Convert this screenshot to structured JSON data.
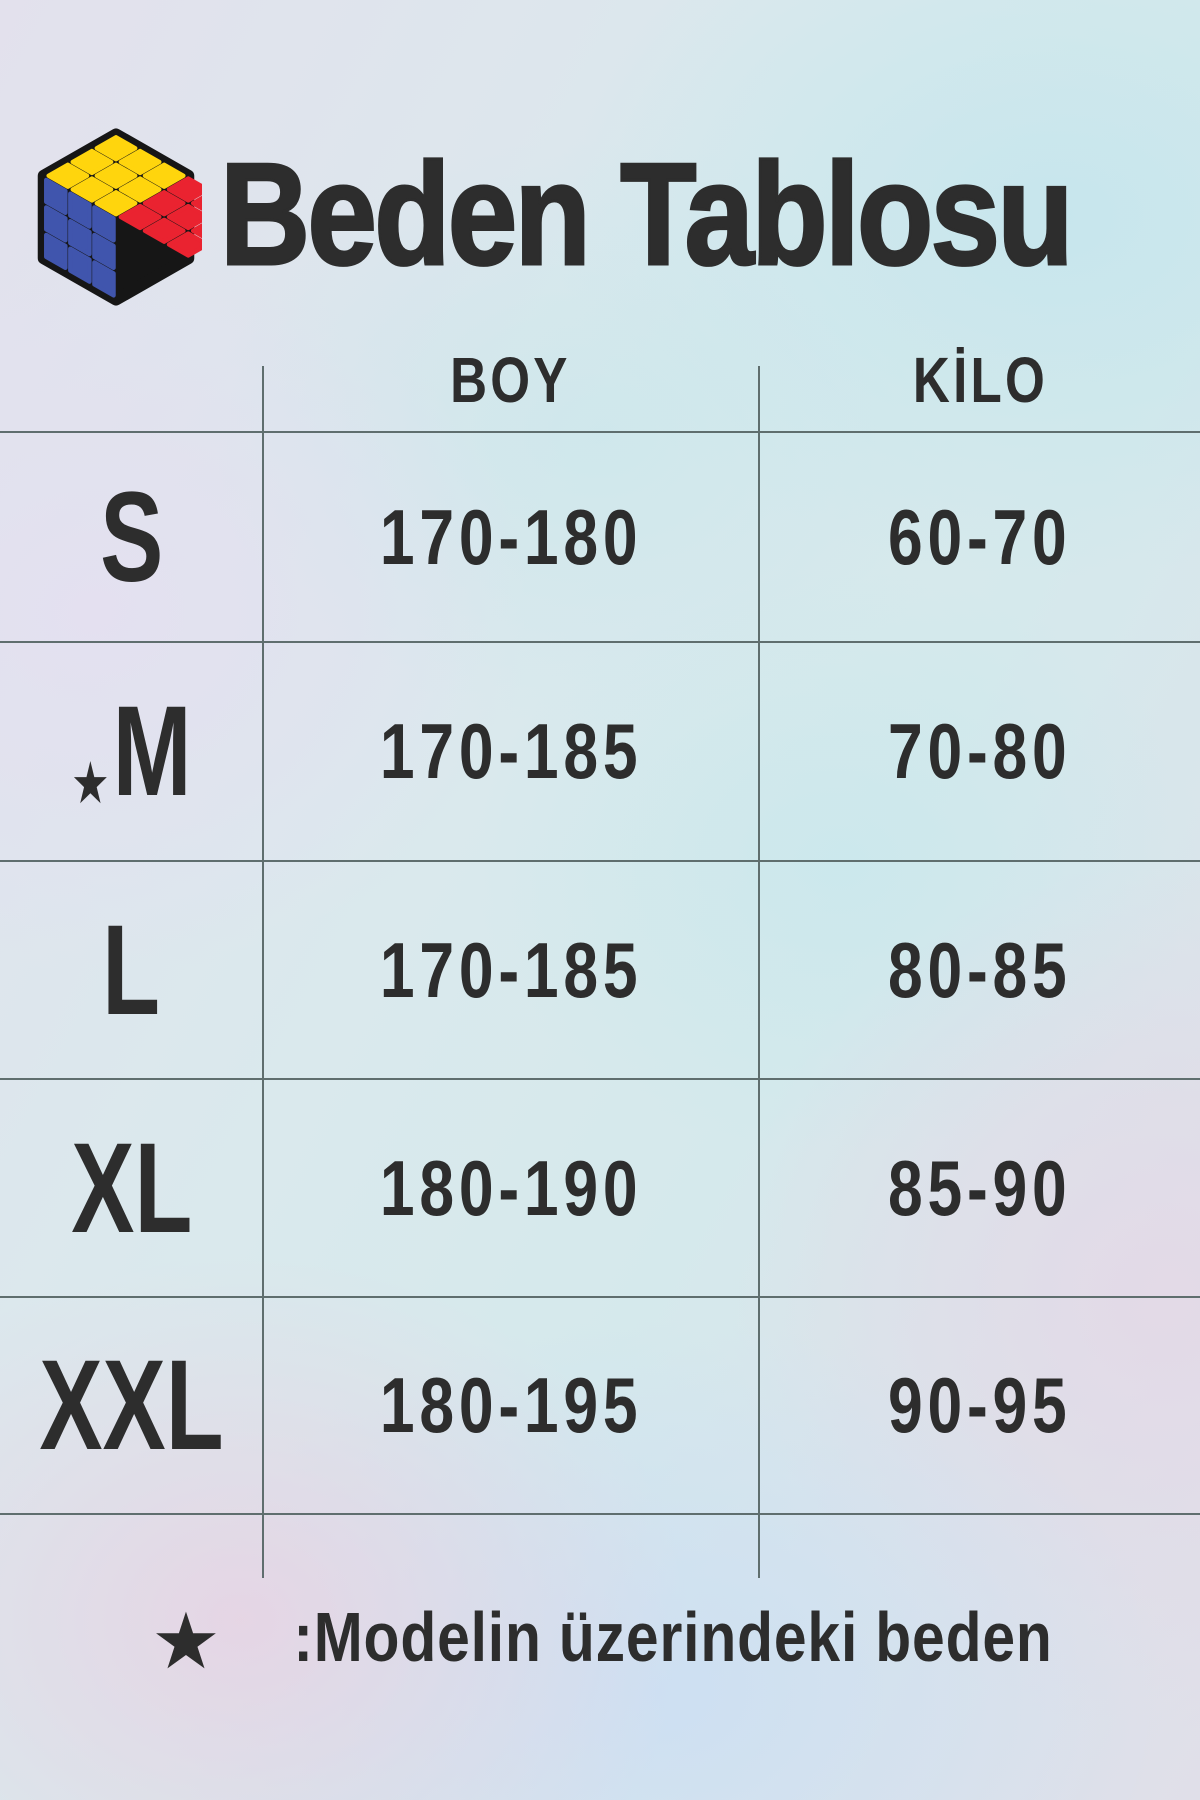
{
  "header": {
    "title": "Beden Tablosu"
  },
  "logo": {
    "icon": "rubiks-cube",
    "colors": {
      "top": "#ffd50d",
      "left": "#4055ad",
      "right": "#ea2330",
      "outline": "#161616"
    }
  },
  "table": {
    "columns": [
      "BOY",
      "KİLO"
    ],
    "rows": [
      {
        "size": "S",
        "boy": "170-180",
        "kilo": "60-70"
      },
      {
        "size": "M",
        "star_marker": "★",
        "boy": "170-185",
        "kilo": "70-80"
      },
      {
        "size": "L",
        "boy": "170-185",
        "kilo": "80-85"
      },
      {
        "size": "XL",
        "boy": "180-190",
        "kilo": "85-90"
      },
      {
        "size": "XXL",
        "boy": "180-195",
        "kilo": "90-95"
      }
    ]
  },
  "footer": {
    "star": "★",
    "note": ":Modelin üzerindeki beden"
  },
  "colors": {
    "text": "#2d2d2d",
    "grid_line": "#5f6e6e"
  }
}
